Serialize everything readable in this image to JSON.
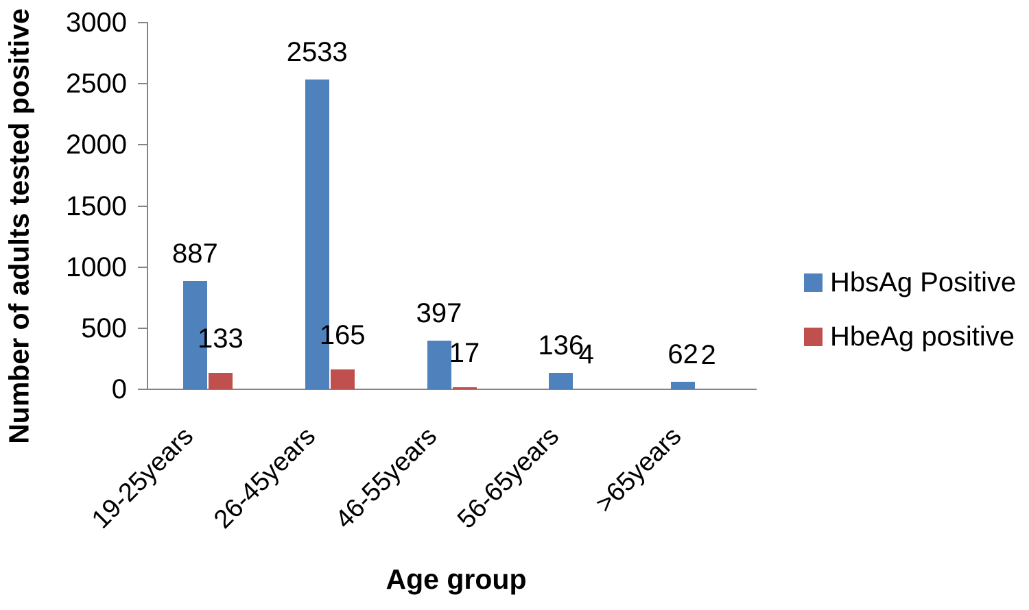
{
  "chart_data": {
    "type": "bar",
    "title": "",
    "xlabel": "Age group",
    "ylabel": "Number of adults tested positive",
    "ylim": [
      0,
      3000
    ],
    "yticks": [
      0,
      500,
      1000,
      1500,
      2000,
      2500,
      3000
    ],
    "categories": [
      "19-25years",
      "26-45years",
      "46-55years",
      "56-65years",
      ">65years"
    ],
    "series": [
      {
        "name": "HbsAg Positive",
        "color": "#4F81BD",
        "values": [
          887,
          2533,
          397,
          136,
          62
        ]
      },
      {
        "name": "HbeAg positive",
        "color": "#C0504D",
        "values": [
          133,
          165,
          17,
          4,
          2
        ]
      }
    ],
    "data_labels": true,
    "grid": false,
    "legend_position": "right",
    "axis_color": "#848484",
    "text_color": "#000000",
    "background_color": "#ffffff"
  }
}
